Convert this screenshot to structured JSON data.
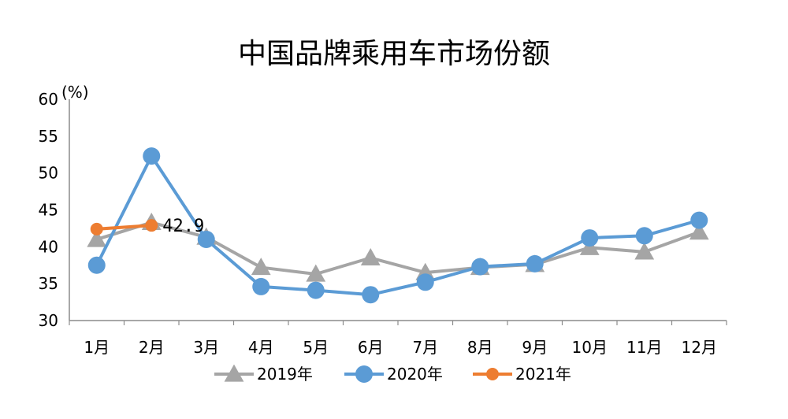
{
  "chart_data": {
    "type": "line",
    "title": "中国品牌乘用车市场份额",
    "ylabel": "(%)",
    "xlabel": "",
    "categories": [
      "1月",
      "2月",
      "3月",
      "4月",
      "5月",
      "6月",
      "7月",
      "8月",
      "9月",
      "10月",
      "11月",
      "12月"
    ],
    "ylim": [
      30,
      60
    ],
    "yticks": [
      30,
      35,
      40,
      45,
      50,
      55,
      60
    ],
    "grid": false,
    "legend": "bottom",
    "series": [
      {
        "name": "2019年",
        "color": "#a5a5a5",
        "marker": "triangle",
        "values": [
          41.0,
          43.3,
          41.3,
          37.2,
          36.3,
          38.5,
          36.5,
          37.2,
          37.6,
          39.9,
          39.3,
          42.0
        ]
      },
      {
        "name": "2020年",
        "color": "#5b9bd5",
        "marker": "circle",
        "values": [
          37.5,
          52.3,
          41.0,
          34.6,
          34.1,
          33.5,
          35.2,
          37.3,
          37.7,
          41.2,
          41.5,
          43.6
        ]
      },
      {
        "name": "2021年",
        "color": "#ed7d31",
        "marker": "circle",
        "values": [
          42.4,
          42.9,
          null,
          null,
          null,
          null,
          null,
          null,
          null,
          null,
          null,
          null
        ]
      }
    ],
    "annotations": [
      {
        "series": "2021年",
        "index": 1,
        "text": "42.9"
      }
    ]
  }
}
